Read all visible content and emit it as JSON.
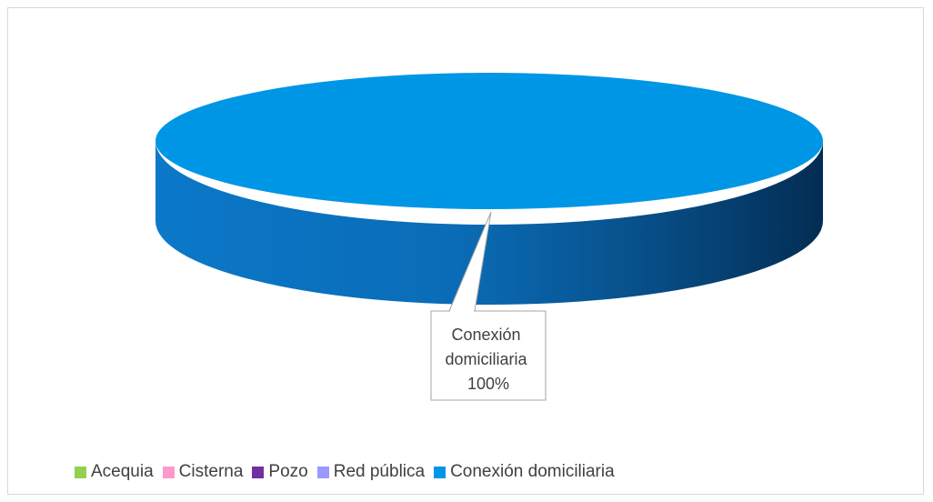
{
  "chart_data": {
    "type": "pie",
    "title": "",
    "categories": [
      "Acequia",
      "Cisterna",
      "Pozo",
      "Red pública",
      "Conexión domiciliaria"
    ],
    "values": [
      0,
      0,
      0,
      0,
      100
    ],
    "colors": [
      "#92d050",
      "#ff99cc",
      "#7030a0",
      "#9999ff",
      "#0096e6"
    ],
    "data_labels": [
      {
        "category": "Conexión domiciliaria",
        "lines": [
          "Conexión",
          "domiciliaria",
          "100%"
        ]
      }
    ],
    "legend_position": "bottom",
    "style": "3d"
  }
}
